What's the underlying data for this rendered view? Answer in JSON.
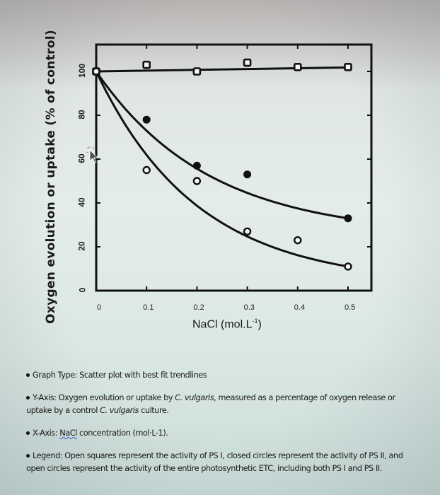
{
  "chart_data": {
    "type": "scatter",
    "title": "",
    "xlabel": "NaCl (mol.L-1)",
    "xlabel_main": "NaCl (mol.L",
    "xlabel_sup": "-1",
    "xlabel_close": ")",
    "ylabel": "Oxygen evolution or uptake (% of control)",
    "xlim": [
      0,
      0.5
    ],
    "ylim": [
      0,
      110
    ],
    "x_ticks": [
      "0",
      "0.1",
      "0.2",
      "0.3",
      "0.4",
      "0.5"
    ],
    "y_ticks": [
      "0",
      "20",
      "40",
      "60",
      "80",
      "100"
    ],
    "grid": false,
    "legend": "none (described in notes)",
    "series": [
      {
        "name": "PS I",
        "marker": "open-square",
        "trendline": "flat line at ~101",
        "x": [
          0,
          0.1,
          0.2,
          0.3,
          0.4,
          0.5
        ],
        "values": [
          100,
          103,
          100,
          104,
          102,
          102
        ]
      },
      {
        "name": "PS II",
        "marker": "closed-circle",
        "trendline": "exponential decay from 100 to ~33",
        "x": [
          0,
          0.1,
          0.2,
          0.3,
          0.5
        ],
        "values": [
          100,
          78,
          57,
          53,
          33
        ]
      },
      {
        "name": "Entire photosynthetic ETC (PS I and PS II)",
        "marker": "open-circle",
        "trendline": "exponential decay from 100 to ~11",
        "x": [
          0,
          0.1,
          0.2,
          0.3,
          0.4,
          0.5
        ],
        "values": [
          100,
          55,
          50,
          27,
          23,
          11
        ]
      }
    ]
  },
  "notes": {
    "graph_type_label": "Graph Type:",
    "graph_type": " Scatter plot with best fit trendlines",
    "y_axis_label": "Y-Axis:",
    "y_axis_1": " Oxygen evolution or uptake by ",
    "y_axis_species": "C. vulgaris",
    "y_axis_2": ", measured as a percentage of oxygen release or uptake by a control ",
    "y_axis_species_2": "C. vulgaris",
    "y_axis_3": " culture.",
    "x_axis_label": "X-Axis:",
    "x_axis_nacl": "NaCl",
    "x_axis_rest": " concentration (mol·L-1).",
    "legend_label": "Legend:",
    "legend_text": " Open squares represent the activity of PS I, closed circles represent the activity of PS II, and open circles represent the activity of the entire photosynthetic ETC, including both PS I and PS II."
  }
}
